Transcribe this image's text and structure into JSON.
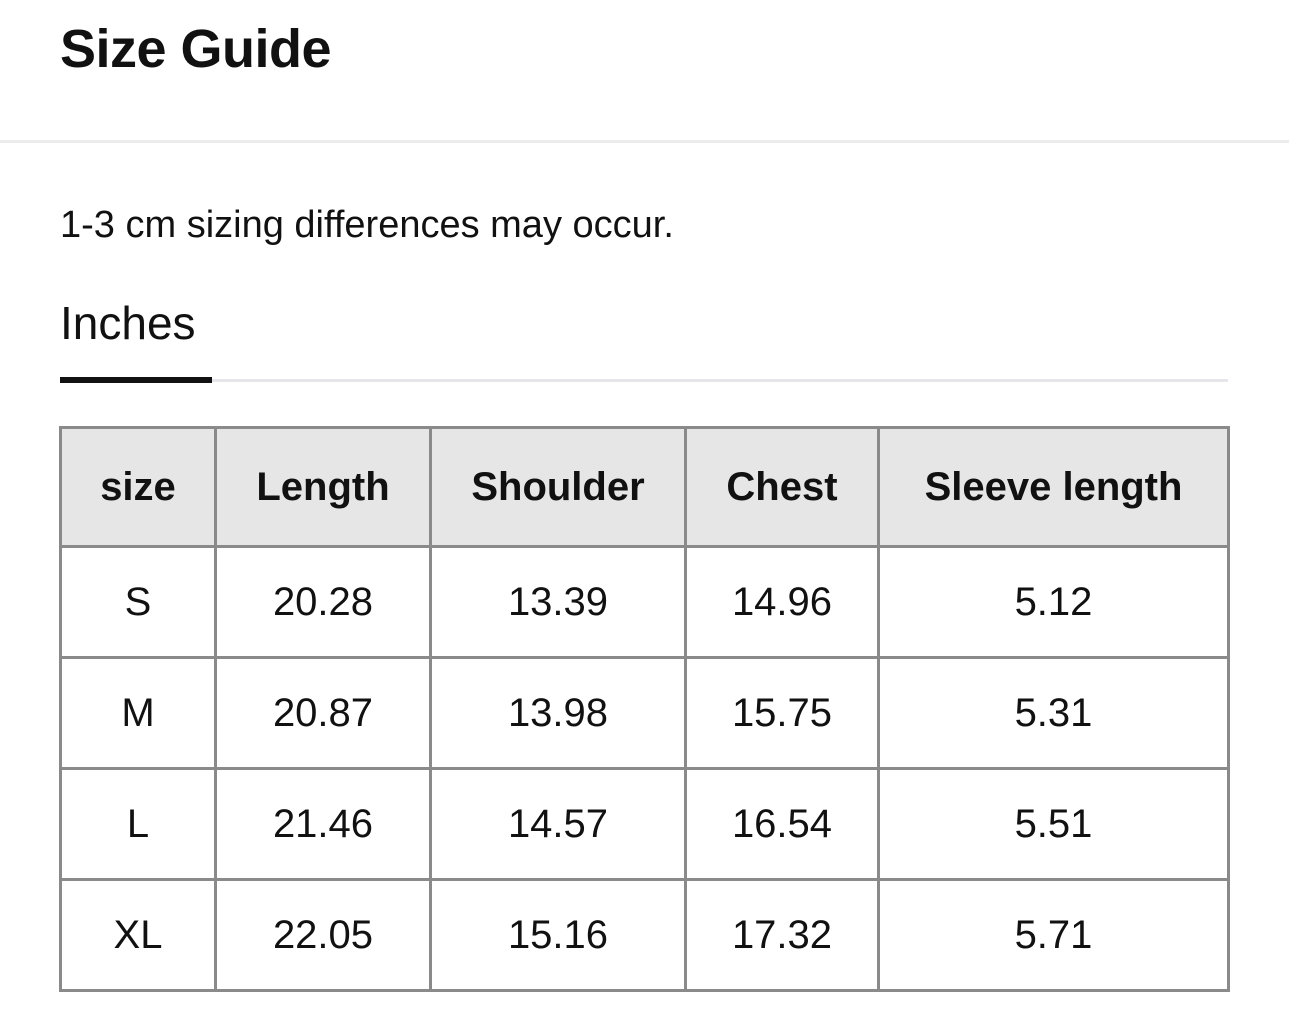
{
  "header": {
    "title": "Size Guide"
  },
  "note": "1-3 cm sizing differences may occur.",
  "tabs": [
    {
      "label": "Inches",
      "active": true
    }
  ],
  "table": {
    "columns": [
      "size",
      "Length",
      "Shoulder",
      "Chest",
      "Sleeve length"
    ],
    "rows": [
      [
        "S",
        "20.28",
        "13.39",
        "14.96",
        "5.12"
      ],
      [
        "M",
        "20.87",
        "13.98",
        "15.75",
        "5.31"
      ],
      [
        "L",
        "21.46",
        "14.57",
        "16.54",
        "5.51"
      ],
      [
        "XL",
        "22.05",
        "15.16",
        "17.32",
        "5.71"
      ]
    ]
  },
  "colors": {
    "header_bg": "#e6e6e6",
    "border": "#8a8a8a",
    "tab_indicator": "#111111"
  }
}
